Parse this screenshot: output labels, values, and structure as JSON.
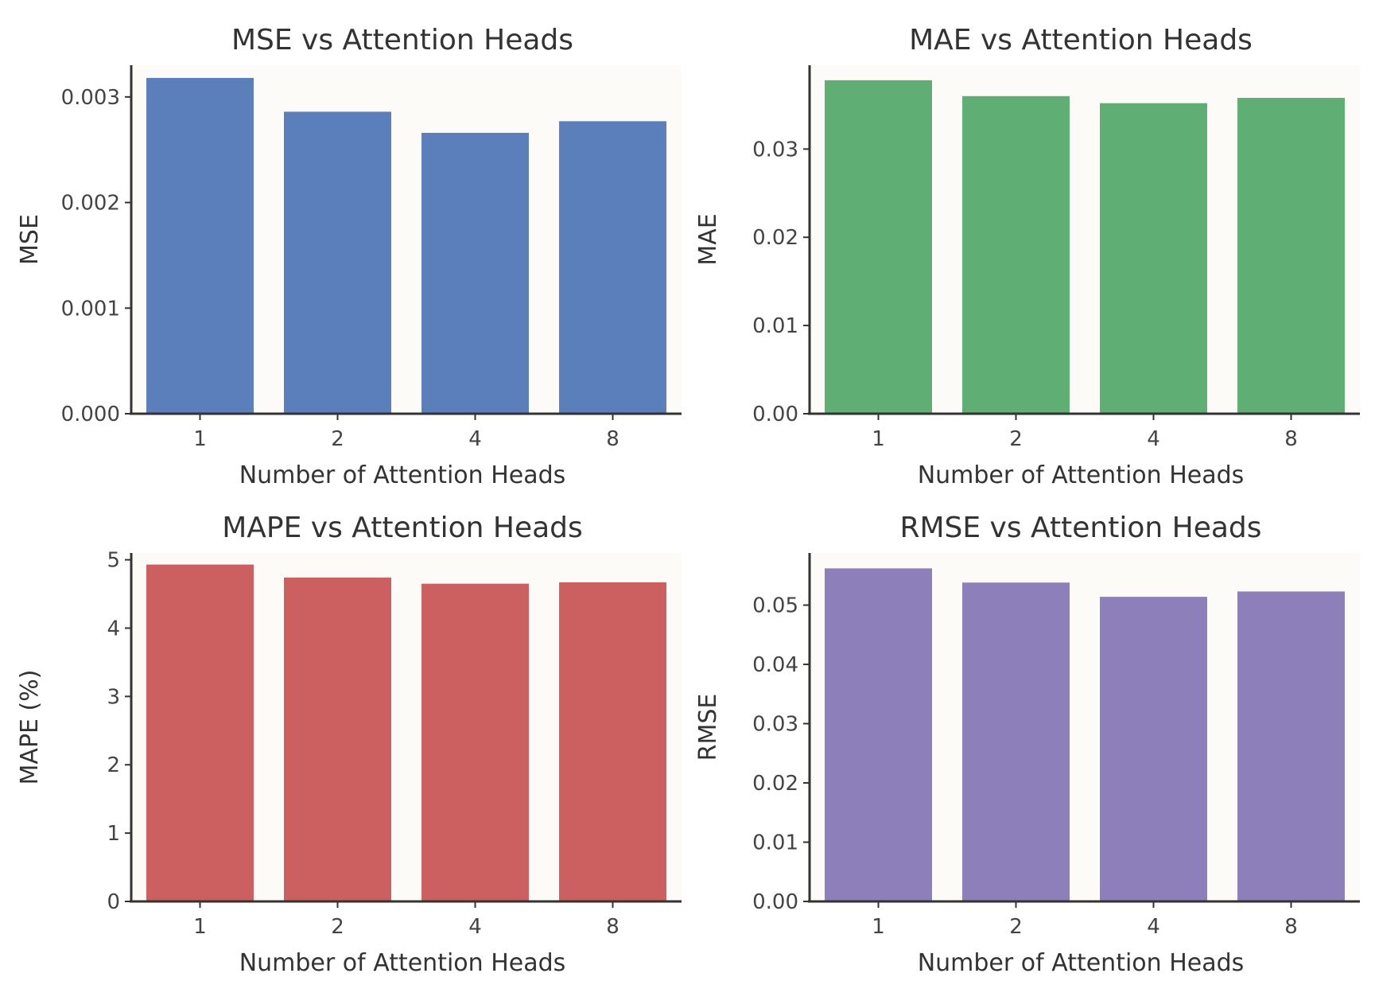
{
  "chart_data": [
    {
      "type": "bar",
      "title": "MSE vs Attention Heads",
      "xlabel": "Number of Attention Heads",
      "ylabel": "MSE",
      "categories": [
        "1",
        "2",
        "4",
        "8"
      ],
      "values": [
        0.00318,
        0.00286,
        0.00266,
        0.00277
      ],
      "ylim": [
        0,
        0.0033
      ],
      "yticks": [
        0.0,
        0.001,
        0.002,
        0.003
      ],
      "ytick_labels": [
        "0.000",
        "0.001",
        "0.002",
        "0.003"
      ],
      "color": "#5b7fbb"
    },
    {
      "type": "bar",
      "title": "MAE vs Attention Heads",
      "xlabel": "Number of Attention Heads",
      "ylabel": "MAE",
      "categories": [
        "1",
        "2",
        "4",
        "8"
      ],
      "values": [
        0.0378,
        0.036,
        0.0352,
        0.0358
      ],
      "ylim": [
        0,
        0.0395
      ],
      "yticks": [
        0.0,
        0.01,
        0.02,
        0.03
      ],
      "ytick_labels": [
        "0.00",
        "0.01",
        "0.02",
        "0.03"
      ],
      "color": "#5fae74"
    },
    {
      "type": "bar",
      "title": "MAPE vs Attention Heads",
      "xlabel": "Number of Attention Heads",
      "ylabel": "MAPE (%)",
      "categories": [
        "1",
        "2",
        "4",
        "8"
      ],
      "values": [
        4.93,
        4.74,
        4.65,
        4.67
      ],
      "ylim": [
        0,
        5.1
      ],
      "yticks": [
        0,
        1,
        2,
        3,
        4,
        5
      ],
      "ytick_labels": [
        "0",
        "1",
        "2",
        "3",
        "4",
        "5"
      ],
      "color": "#cc5f5f"
    },
    {
      "type": "bar",
      "title": "RMSE vs Attention Heads",
      "xlabel": "Number of Attention Heads",
      "ylabel": "RMSE",
      "categories": [
        "1",
        "2",
        "4",
        "8"
      ],
      "values": [
        0.0562,
        0.0538,
        0.0514,
        0.0523
      ],
      "ylim": [
        0,
        0.0588
      ],
      "yticks": [
        0.0,
        0.01,
        0.02,
        0.03,
        0.04,
        0.05
      ],
      "ytick_labels": [
        "0.00",
        "0.01",
        "0.02",
        "0.03",
        "0.04",
        "0.05"
      ],
      "color": "#8c7fba"
    }
  ]
}
